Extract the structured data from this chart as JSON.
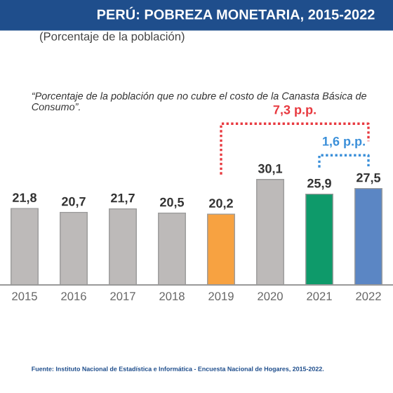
{
  "chart_data": {
    "type": "bar",
    "title": "PERÚ: POBREZA MONETARIA, 2015-2022",
    "subtitle": "(Porcentaje de la población)",
    "categories": [
      "2015",
      "2016",
      "2017",
      "2018",
      "2019",
      "2020",
      "2021",
      "2022"
    ],
    "values": [
      21.8,
      20.7,
      21.7,
      20.5,
      20.2,
      30.1,
      25.9,
      27.5
    ],
    "colors": [
      "#bdbab9",
      "#bdbab9",
      "#bdbab9",
      "#bdbab9",
      "#f7a241",
      "#bdbab9",
      "#0e9a6a",
      "#5b86c4"
    ],
    "value_labels": [
      "21,8",
      "20,7",
      "21,7",
      "20,5",
      "20,2",
      "30,1",
      "25,9",
      "27,5"
    ],
    "grid": false,
    "legend": false,
    "annotations": [
      "“Porcentaje de la población que no cubre el costo de la Canasta Básica de Consumo”.",
      "7,3 p.p.",
      "1,6 p.p.",
      "Fuente: Instituto Nacional de Estadística e Informática - Encuesta Nacional de Hogares, 2015-2022."
    ]
  }
}
